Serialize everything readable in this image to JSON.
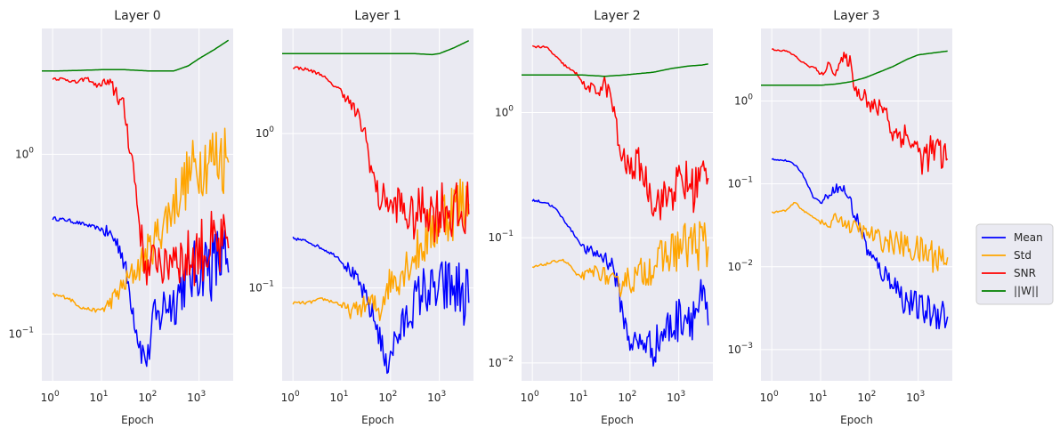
{
  "chart_data": {
    "type": "line",
    "x_scale": "log",
    "y_scale": "log",
    "grid": true,
    "legend_placement": "center-right",
    "legend": [
      {
        "name": "Mean",
        "color": "#0000ff"
      },
      {
        "name": "Std",
        "color": "#ffa500"
      },
      {
        "name": "SNR",
        "color": "#ff0000"
      },
      {
        "name": "||W||",
        "color": "#008000"
      }
    ],
    "panels": [
      {
        "title": "Layer 0",
        "xlabel": "Epoch",
        "xlim": [
          0.6,
          5000
        ],
        "ylim": [
          0.055,
          5.0
        ],
        "xticks": [
          {
            "v": 1,
            "exp": "0"
          },
          {
            "v": 10,
            "exp": "1"
          },
          {
            "v": 100,
            "exp": "2"
          },
          {
            "v": 1000,
            "exp": "3"
          }
        ],
        "yticks": [
          {
            "v": 0.1,
            "exp": "−1"
          },
          {
            "v": 1,
            "exp": "0"
          }
        ],
        "series": [
          {
            "name": "Mean",
            "x": [
              1,
              2,
              4,
              8,
              15,
              25,
              40,
              55,
              70,
              90,
              110,
              150,
              200,
              300,
              500,
              800,
              1200,
              2000,
              3000,
              4000
            ],
            "y": [
              0.44,
              0.43,
              0.41,
              0.39,
              0.36,
              0.3,
              0.16,
              0.1,
              0.078,
              0.072,
              0.12,
              0.12,
              0.15,
              0.15,
              0.2,
              0.22,
              0.25,
              0.24,
              0.27,
              0.22
            ]
          },
          {
            "name": "Std",
            "x": [
              1,
              2,
              4,
              8,
              12,
              20,
              35,
              60,
              100,
              150,
              250,
              400,
              700,
              1000,
              1500,
              2000,
              3000,
              4000
            ],
            "y": [
              0.165,
              0.16,
              0.14,
              0.135,
              0.14,
              0.165,
              0.2,
              0.24,
              0.3,
              0.37,
              0.48,
              0.62,
              0.8,
              0.9,
              0.95,
              0.95,
              1.0,
              0.9
            ]
          },
          {
            "name": "SNR",
            "x": [
              1,
              2,
              3,
              5,
              8,
              12,
              20,
              30,
              45,
              60,
              75,
              90,
              110,
              150,
              200,
              300,
              500,
              800,
              1200,
              2000,
              3000,
              4000
            ],
            "y": [
              2.65,
              2.6,
              2.5,
              2.65,
              2.4,
              2.5,
              2.25,
              1.7,
              0.85,
              0.42,
              0.26,
              0.22,
              0.25,
              0.28,
              0.22,
              0.3,
              0.25,
              0.28,
              0.3,
              0.3,
              0.28,
              0.3
            ]
          },
          {
            "name": "||W||",
            "x": [
              0.6,
              1,
              3,
              10,
              30,
              100,
              300,
              600,
              1000,
              2000,
              4000
            ],
            "y": [
              2.9,
              2.9,
              2.92,
              2.95,
              2.95,
              2.9,
              2.9,
              3.1,
              3.4,
              3.8,
              4.3
            ]
          }
        ]
      },
      {
        "title": "Layer 1",
        "xlabel": "Epoch",
        "xlim": [
          0.6,
          5000
        ],
        "ylim": [
          0.025,
          4.8
        ],
        "xticks": [
          {
            "v": 1,
            "exp": "0"
          },
          {
            "v": 10,
            "exp": "1"
          },
          {
            "v": 100,
            "exp": "2"
          },
          {
            "v": 1000,
            "exp": "3"
          }
        ],
        "yticks": [
          {
            "v": 0.1,
            "exp": "−1"
          },
          {
            "v": 1,
            "exp": "0"
          }
        ],
        "series": [
          {
            "name": "Mean",
            "x": [
              1,
              2,
              4,
              8,
              15,
              25,
              40,
              60,
              80,
              100,
              150,
              200,
              300,
              500,
              800,
              1200,
              2000,
              3000,
              4000
            ],
            "y": [
              0.21,
              0.2,
              0.18,
              0.16,
              0.13,
              0.1,
              0.07,
              0.05,
              0.03,
              0.04,
              0.05,
              0.06,
              0.08,
              0.1,
              0.09,
              0.1,
              0.1,
              0.09,
              0.08
            ]
          },
          {
            "name": "Std",
            "x": [
              1,
              2,
              4,
              8,
              15,
              25,
              40,
              60,
              80,
              100,
              150,
              200,
              300,
              500,
              800,
              1200,
              2000,
              3000,
              4000
            ],
            "y": [
              0.08,
              0.08,
              0.085,
              0.08,
              0.07,
              0.075,
              0.08,
              0.07,
              0.1,
              0.11,
              0.12,
              0.14,
              0.16,
              0.2,
              0.25,
              0.3,
              0.33,
              0.35,
              0.35
            ]
          },
          {
            "name": "SNR",
            "x": [
              1,
              2,
              4,
              6,
              8,
              10,
              15,
              20,
              30,
              40,
              60,
              80,
              100,
              150,
              200,
              300,
              500,
              800,
              1200,
              2000,
              3000,
              4000
            ],
            "y": [
              2.7,
              2.6,
              2.4,
              2.1,
              2.0,
              1.9,
              1.55,
              1.35,
              1.0,
              0.6,
              0.36,
              0.4,
              0.32,
              0.36,
              0.3,
              0.28,
              0.35,
              0.3,
              0.35,
              0.3,
              0.28,
              0.3
            ]
          },
          {
            "name": "||W||",
            "x": [
              0.6,
              1,
              3,
              10,
              30,
              100,
              300,
              700,
              1000,
              2000,
              4000
            ],
            "y": [
              3.3,
              3.3,
              3.3,
              3.3,
              3.3,
              3.3,
              3.3,
              3.25,
              3.3,
              3.6,
              4.0
            ]
          }
        ]
      },
      {
        "title": "Layer 2",
        "xlabel": "Epoch",
        "xlim": [
          0.6,
          5000
        ],
        "ylim": [
          0.0072,
          4.7
        ],
        "xticks": [
          {
            "v": 1,
            "exp": "0"
          },
          {
            "v": 10,
            "exp": "1"
          },
          {
            "v": 100,
            "exp": "2"
          },
          {
            "v": 1000,
            "exp": "3"
          }
        ],
        "yticks": [
          {
            "v": 0.01,
            "exp": "−2"
          },
          {
            "v": 0.1,
            "exp": "−1"
          },
          {
            "v": 1,
            "exp": "0"
          }
        ],
        "series": [
          {
            "name": "Mean",
            "x": [
              1,
              2,
              3,
              5,
              8,
              12,
              20,
              30,
              45,
              60,
              80,
              100,
              150,
              200,
              300,
              500,
              800,
              1200,
              2000,
              3000,
              4000
            ],
            "y": [
              0.2,
              0.19,
              0.17,
              0.13,
              0.1,
              0.08,
              0.075,
              0.07,
              0.06,
              0.035,
              0.02,
              0.015,
              0.014,
              0.015,
              0.013,
              0.018,
              0.02,
              0.025,
              0.025,
              0.03,
              0.02
            ]
          },
          {
            "name": "Std",
            "x": [
              1,
              2,
              4,
              6,
              8,
              12,
              20,
              30,
              40,
              60,
              80,
              100,
              150,
              200,
              300,
              500,
              800,
              1200,
              2000,
              3000,
              4000
            ],
            "y": [
              0.058,
              0.062,
              0.067,
              0.06,
              0.05,
              0.05,
              0.055,
              0.05,
              0.045,
              0.04,
              0.05,
              0.045,
              0.05,
              0.055,
              0.06,
              0.07,
              0.08,
              0.085,
              0.09,
              0.09,
              0.085
            ]
          },
          {
            "name": "SNR",
            "x": [
              1,
              2,
              4,
              6,
              8,
              10,
              12,
              15,
              20,
              30,
              40,
              50,
              60,
              80,
              100,
              150,
              200,
              300,
              500,
              800,
              1200,
              2000,
              3000,
              4000
            ],
            "y": [
              3.4,
              3.3,
              2.5,
              2.2,
              2.05,
              1.85,
              1.55,
              1.6,
              1.45,
              1.7,
              1.35,
              0.9,
              0.5,
              0.4,
              0.35,
              0.4,
              0.3,
              0.2,
              0.2,
              0.25,
              0.28,
              0.25,
              0.3,
              0.3
            ]
          },
          {
            "name": "||W||",
            "x": [
              0.6,
              1,
              3,
              10,
              30,
              80,
              150,
              300,
              700,
              1500,
              3000,
              4000
            ],
            "y": [
              2.0,
              2.0,
              2.0,
              2.0,
              1.95,
              2.0,
              2.05,
              2.1,
              2.25,
              2.35,
              2.4,
              2.45
            ]
          }
        ]
      },
      {
        "title": "Layer 3",
        "xlabel": "Epoch",
        "xlim": [
          0.6,
          5000
        ],
        "ylim": [
          0.00042,
          7.5
        ],
        "xticks": [
          {
            "v": 1,
            "exp": "0"
          },
          {
            "v": 10,
            "exp": "1"
          },
          {
            "v": 100,
            "exp": "2"
          },
          {
            "v": 1000,
            "exp": "3"
          }
        ],
        "yticks": [
          {
            "v": 0.001,
            "exp": "−3"
          },
          {
            "v": 0.01,
            "exp": "−2"
          },
          {
            "v": 0.1,
            "exp": "−1"
          },
          {
            "v": 1,
            "exp": "0"
          }
        ],
        "series": [
          {
            "name": "Mean",
            "x": [
              1,
              2,
              3,
              4,
              5,
              7,
              10,
              15,
              20,
              30,
              40,
              50,
              60,
              80,
              100,
              150,
              200,
              300,
              500,
              800,
              1200,
              2000,
              3000,
              4000
            ],
            "y": [
              0.2,
              0.19,
              0.17,
              0.14,
              0.11,
              0.07,
              0.06,
              0.075,
              0.09,
              0.085,
              0.065,
              0.04,
              0.035,
              0.02,
              0.014,
              0.01,
              0.008,
              0.007,
              0.004,
              0.0035,
              0.003,
              0.0028,
              0.003,
              0.0025
            ]
          },
          {
            "name": "Std",
            "x": [
              1,
              2,
              3,
              4,
              5,
              7,
              10,
              15,
              20,
              30,
              40,
              60,
              80,
              100,
              150,
              200,
              300,
              500,
              800,
              1200,
              2000,
              3000,
              4000
            ],
            "y": [
              0.045,
              0.048,
              0.06,
              0.05,
              0.045,
              0.04,
              0.035,
              0.03,
              0.04,
              0.035,
              0.03,
              0.03,
              0.025,
              0.025,
              0.022,
              0.02,
              0.02,
              0.018,
              0.016,
              0.015,
              0.014,
              0.013,
              0.013
            ]
          },
          {
            "name": "SNR",
            "x": [
              1,
              2,
              3,
              4,
              6,
              8,
              10,
              15,
              20,
              30,
              40,
              50,
              60,
              80,
              100,
              150,
              200,
              300,
              500,
              800,
              1200,
              2000,
              3000,
              4000
            ],
            "y": [
              4.2,
              4.0,
              3.5,
              3.0,
              2.6,
              2.5,
              2.0,
              2.8,
              2.2,
              3.3,
              3.0,
              1.5,
              1.2,
              1.3,
              0.85,
              0.8,
              0.9,
              0.4,
              0.4,
              0.3,
              0.2,
              0.25,
              0.22,
              0.2
            ]
          },
          {
            "name": "||W||",
            "x": [
              0.6,
              1,
              3,
              10,
              20,
              40,
              80,
              150,
              300,
              600,
              1000,
              2000,
              4000
            ],
            "y": [
              1.55,
              1.55,
              1.55,
              1.55,
              1.6,
              1.7,
              1.9,
              2.2,
              2.6,
              3.2,
              3.6,
              3.8,
              4.0
            ]
          }
        ]
      }
    ]
  }
}
